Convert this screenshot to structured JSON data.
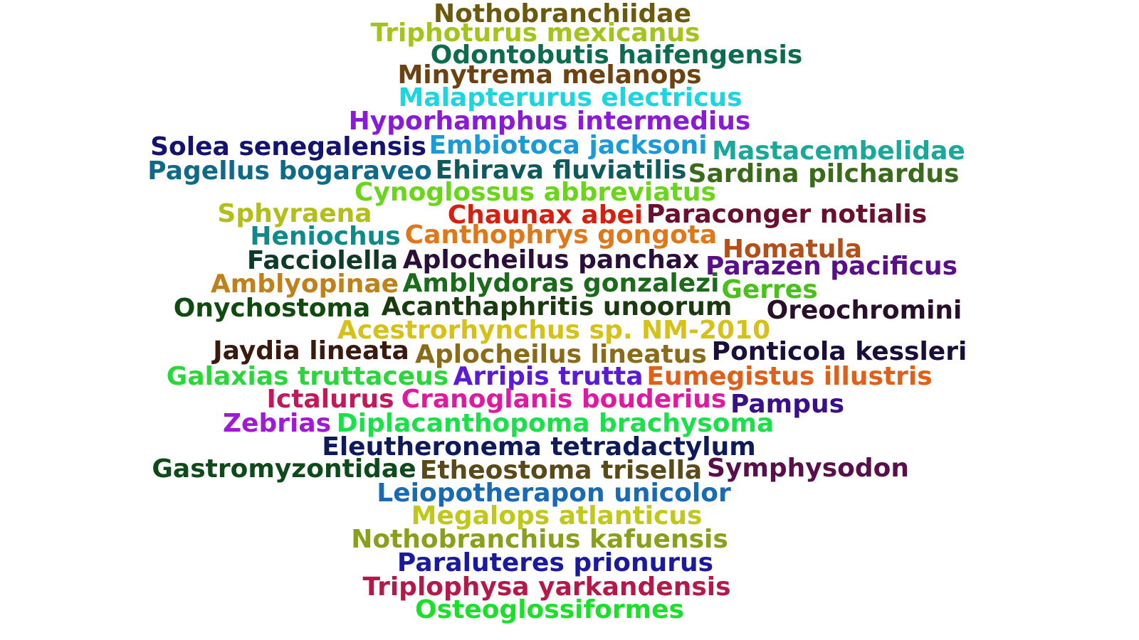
{
  "words": [
    {
      "text": "Nothobranchiidae",
      "color": "#6b5a0e"
    },
    {
      "text": "Triphoturus mexicanus",
      "color": "#a3c41c"
    },
    {
      "text": "Odontobutis haifengensis",
      "color": "#0d6b4f"
    },
    {
      "text": "Minytrema melanops",
      "color": "#6b4210"
    },
    {
      "text": "Malapterurus electricus",
      "color": "#1ad6e0"
    },
    {
      "text": "Hyporhamphus intermedius",
      "color": "#8a1ad6"
    },
    {
      "text": "Solea senegalensis",
      "color": "#141470"
    },
    {
      "text": "Embiotoca jacksoni",
      "color": "#1a9ad6"
    },
    {
      "text": "Mastacembelidae",
      "color": "#1aa89a"
    },
    {
      "text": "Pagellus bogaraveo",
      "color": "#0f6a8a"
    },
    {
      "text": "Ehirava fluviatilis",
      "color": "#0f5a5a"
    },
    {
      "text": "Sardina pilchardus",
      "color": "#3a6b1a"
    },
    {
      "text": "Cynoglossus abbreviatus",
      "color": "#6ad61a"
    },
    {
      "text": "Sphyraena",
      "color": "#b3be1a"
    },
    {
      "text": "Chaunax abei",
      "color": "#d6200f"
    },
    {
      "text": "Paraconger notialis",
      "color": "#6b0f2e"
    },
    {
      "text": "Heniochus",
      "color": "#0f8a8a"
    },
    {
      "text": "Canthophrys gongota",
      "color": "#e0781a"
    },
    {
      "text": "Homatula",
      "color": "#b3501a"
    },
    {
      "text": "Facciolella",
      "color": "#0f3a2a"
    },
    {
      "text": "Aplocheilus panchax",
      "color": "#2a0f3a"
    },
    {
      "text": "Parazen pacificus",
      "color": "#5a0f8a"
    },
    {
      "text": "Amblyopinae",
      "color": "#c0801a"
    },
    {
      "text": "Amblydoras gonzalezi",
      "color": "#1a6b1a"
    },
    {
      "text": "Gerres",
      "color": "#4ac01a"
    },
    {
      "text": "Onychostoma",
      "color": "#0f4a0f"
    },
    {
      "text": "Acanthaphritis unoorum",
      "color": "#1a3a0f"
    },
    {
      "text": "Oreochromini",
      "color": "#2a0f2a"
    },
    {
      "text": "Acestrorhynchus sp. NM-2010",
      "color": "#d6c01a"
    },
    {
      "text": "Jaydia lineata",
      "color": "#3a1a0f"
    },
    {
      "text": "Aplocheilus lineatus",
      "color": "#8a6b1a"
    },
    {
      "text": "Ponticola kessleri",
      "color": "#1a0f3a"
    },
    {
      "text": "Galaxias truttaceus",
      "color": "#2ad63a"
    },
    {
      "text": "Arripis trutta",
      "color": "#5a1ad6"
    },
    {
      "text": "Eumegistus illustris",
      "color": "#e0601a"
    },
    {
      "text": "Ictalurus",
      "color": "#c01a5a"
    },
    {
      "text": "Cranoglanis bouderius",
      "color": "#e01aa0"
    },
    {
      "text": "Pampus",
      "color": "#3a0f8a"
    },
    {
      "text": "Zebrias",
      "color": "#a01ad6"
    },
    {
      "text": "Diplacanthopoma brachysoma",
      "color": "#1ae04a"
    },
    {
      "text": "Eleutheronema tetradactylum",
      "color": "#0f1a5a"
    },
    {
      "text": "Gastromyzontidae",
      "color": "#0f4a1a"
    },
    {
      "text": "Etheostoma trisella",
      "color": "#5a4a1a"
    },
    {
      "text": "Symphysodon",
      "color": "#5a0f4a"
    },
    {
      "text": "Leiopotherapon unicolor",
      "color": "#1a6ab3"
    },
    {
      "text": "Megalops atlanticus",
      "color": "#c0c81a"
    },
    {
      "text": "Nothobranchius kafuensis",
      "color": "#8aa01a"
    },
    {
      "text": "Paraluteres prionurus",
      "color": "#1a1aa0"
    },
    {
      "text": "Triplophysa yarkandensis",
      "color": "#b31a4a"
    },
    {
      "text": "Osteoglossiformes",
      "color": "#1ae02a"
    }
  ]
}
